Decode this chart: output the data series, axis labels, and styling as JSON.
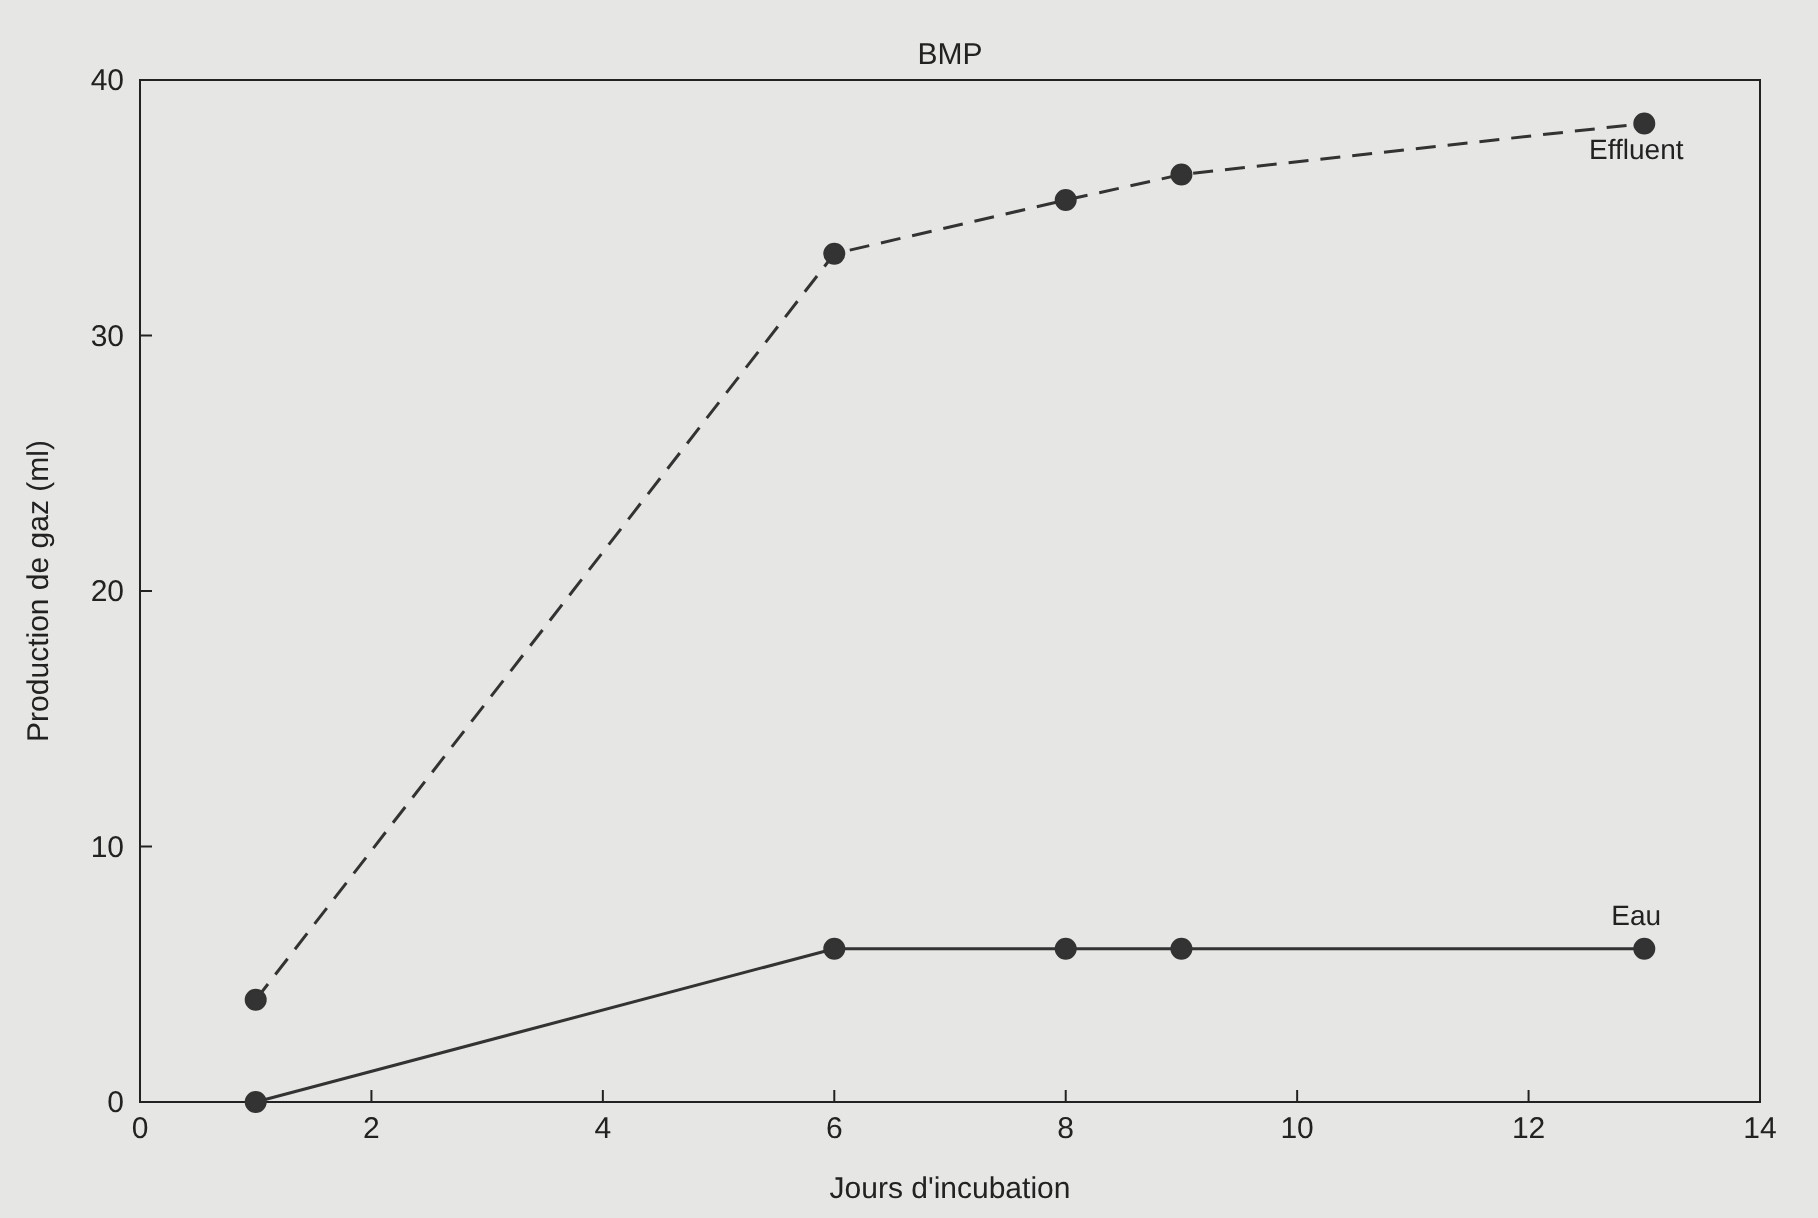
{
  "chart_data": {
    "type": "line",
    "title": "BMP",
    "xlabel": "Jours d'incubation",
    "ylabel": "Production de gaz (ml)",
    "xlim": [
      0,
      14
    ],
    "ylim": [
      0,
      40
    ],
    "xticks": [
      0,
      2,
      4,
      6,
      8,
      10,
      12,
      14
    ],
    "yticks": [
      0,
      10,
      20,
      30,
      40
    ],
    "grid": false,
    "marker": "circle",
    "series": [
      {
        "name": "Effluent",
        "color": "#333333",
        "line_style": "dashed",
        "x": [
          1,
          6,
          8,
          9,
          13
        ],
        "values": [
          4.0,
          33.2,
          35.3,
          36.3,
          38.3
        ]
      },
      {
        "name": "Eau",
        "color": "#333333",
        "line_style": "solid",
        "x": [
          1,
          6,
          8,
          9,
          13
        ],
        "values": [
          0,
          6,
          6,
          6,
          6
        ]
      }
    ]
  }
}
